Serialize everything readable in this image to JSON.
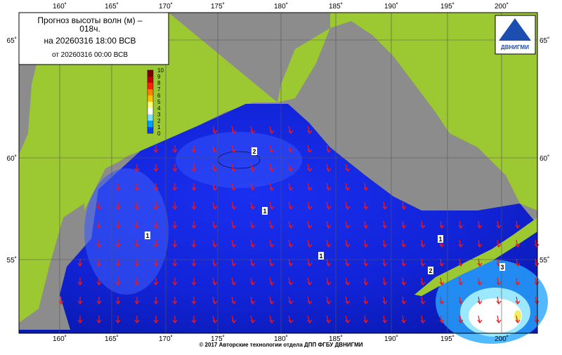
{
  "header": {
    "title": "Прогноз высоты волн (м) –",
    "lead": "018ч.",
    "valid": "на 20260316 18:00 ВСВ",
    "issued": "от 20260316 00:00 ВСВ"
  },
  "logo": {
    "label": "ДВНИГМИ"
  },
  "colorbar": {
    "labels": [
      "10",
      "9",
      "8",
      "7",
      "6",
      "5",
      "4",
      "3",
      "2",
      "1",
      "0"
    ]
  },
  "longitudes": [
    "160˚",
    "165˚",
    "170˚",
    "175˚",
    "180˚",
    "185˚",
    "190˚",
    "195˚",
    "200˚"
  ],
  "latitudes": [
    "65˚",
    "60˚",
    "55˚"
  ],
  "contour_labels": [
    "2",
    "1",
    "1",
    "1",
    "1",
    "2",
    "3"
  ],
  "footer": "© 2017 Авторские технологии отдела ДПП ФГБУ ДВНИГМИ"
}
